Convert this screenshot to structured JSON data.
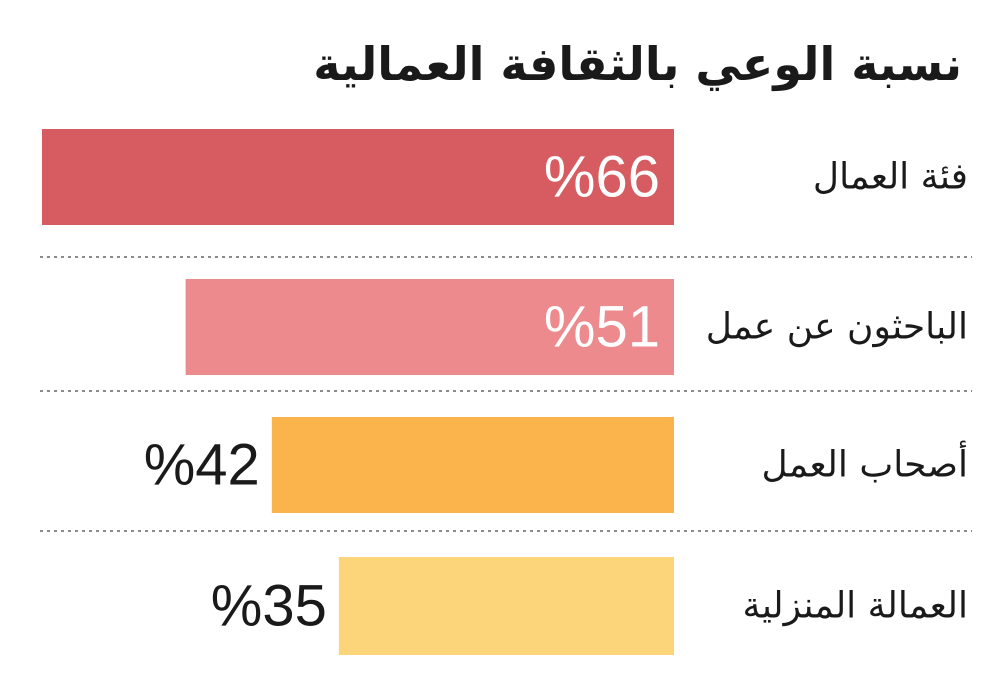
{
  "chart_data": {
    "type": "bar",
    "orientation": "horizontal",
    "title": "نسبة الوعي بالثقافة العمالية",
    "categories": [
      "فئة العمال",
      "الباحثون عن عمل",
      "أصحاب العمل",
      "العمالة المنزلية"
    ],
    "values": [
      66,
      51,
      42,
      35
    ],
    "value_labels": [
      "%66",
      "%51",
      "%42",
      "%35"
    ],
    "unit": "%",
    "colors": [
      "#d65c62",
      "#ec8a8e",
      "#fbb44c",
      "#fcd47a"
    ],
    "xlim": [
      0,
      100
    ],
    "grid": false,
    "legend": false
  }
}
